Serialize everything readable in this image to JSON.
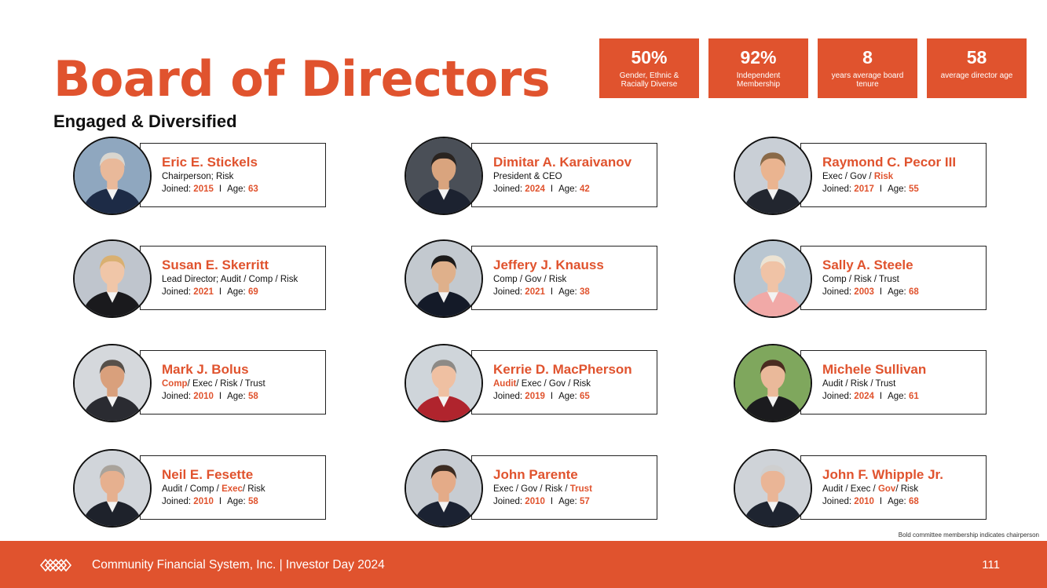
{
  "title": "Board of Directors",
  "subtitle": "Engaged & Diversified",
  "colors": {
    "accent": "#E0532E",
    "text": "#111111"
  },
  "stats": [
    {
      "value": "50%",
      "label": "Gender, Ethnic & Racially Diverse"
    },
    {
      "value": "92%",
      "label": "Independent Membership"
    },
    {
      "value": "8",
      "label": "years average board tenure"
    },
    {
      "value": "58",
      "label": "average director age"
    }
  ],
  "directors": [
    {
      "name": "Eric E. Stickels",
      "role_parts": [
        {
          "text": "Chairperson; Risk",
          "bold": false
        }
      ],
      "joined_label": "Joined:",
      "joined": "2015",
      "age_label": "Age:",
      "age": "63"
    },
    {
      "name": "Dimitar A. Karaivanov",
      "role_parts": [
        {
          "text": "President & CEO",
          "bold": false
        }
      ],
      "joined_label": "Joined:",
      "joined": "2024",
      "age_label": "Age:",
      "age": "42"
    },
    {
      "name": "Raymond C. Pecor III",
      "role_parts": [
        {
          "text": "Exec / Gov / ",
          "bold": false
        },
        {
          "text": "Risk",
          "bold": true
        }
      ],
      "joined_label": "Joined:",
      "joined": "2017",
      "age_label": "Age:",
      "age": "55"
    },
    {
      "name": "Susan E. Skerritt",
      "role_parts": [
        {
          "text": "Lead Director;  Audit / Comp / Risk",
          "bold": false
        }
      ],
      "joined_label": "Joined:",
      "joined": "2021",
      "age_label": "Age:",
      "age": "69"
    },
    {
      "name": "Jeffery J. Knauss",
      "role_parts": [
        {
          "text": "Comp / Gov / Risk",
          "bold": false
        }
      ],
      "joined_label": "Joined:",
      "joined": "2021",
      "age_label": "Age:",
      "age": "38"
    },
    {
      "name": "Sally A. Steele",
      "role_parts": [
        {
          "text": "Comp / Risk / Trust",
          "bold": false
        }
      ],
      "joined_label": "Joined:",
      "joined": "2003",
      "age_label": "Age:",
      "age": "68"
    },
    {
      "name": "Mark J. Bolus",
      "role_parts": [
        {
          "text": "Comp",
          "bold": true
        },
        {
          "text": "/ Exec / Risk / Trust",
          "bold": false
        }
      ],
      "joined_label": "Joined:",
      "joined": "2010",
      "age_label": "Age:",
      "age": "58"
    },
    {
      "name": "Kerrie D. MacPherson",
      "role_parts": [
        {
          "text": "Audit",
          "bold": true
        },
        {
          "text": "/ Exec / Gov / Risk",
          "bold": false
        }
      ],
      "joined_label": "Joined:",
      "joined": "2019",
      "age_label": "Age:",
      "age": "65"
    },
    {
      "name": "Michele Sullivan",
      "role_parts": [
        {
          "text": "Audit / Risk / Trust",
          "bold": false
        }
      ],
      "joined_label": "Joined:",
      "joined": "2024",
      "age_label": "Age:",
      "age": "61"
    },
    {
      "name": "Neil E. Fesette",
      "role_parts": [
        {
          "text": "Audit / Comp / ",
          "bold": false
        },
        {
          "text": "Exec",
          "bold": true
        },
        {
          "text": "/ Risk",
          "bold": false
        }
      ],
      "joined_label": "Joined:",
      "joined": "2010",
      "age_label": "Age:",
      "age": "58"
    },
    {
      "name": "John Parente",
      "role_parts": [
        {
          "text": "Exec / Gov / Risk / ",
          "bold": false
        },
        {
          "text": "Trust",
          "bold": true
        }
      ],
      "joined_label": "Joined:",
      "joined": "2010",
      "age_label": "Age:",
      "age": "57"
    },
    {
      "name": "John F. Whipple Jr.",
      "role_parts": [
        {
          "text": "Audit / Exec / ",
          "bold": false
        },
        {
          "text": "Gov",
          "bold": true
        },
        {
          "text": "/ Risk",
          "bold": false
        }
      ],
      "joined_label": "Joined:",
      "joined": "2010",
      "age_label": "Age:",
      "age": "68"
    }
  ],
  "separator": "I",
  "note": "Bold committee membership indicates chairperson",
  "footer": {
    "text": "Community Financial System, Inc.  |  Investor Day 2024",
    "page": "111"
  }
}
